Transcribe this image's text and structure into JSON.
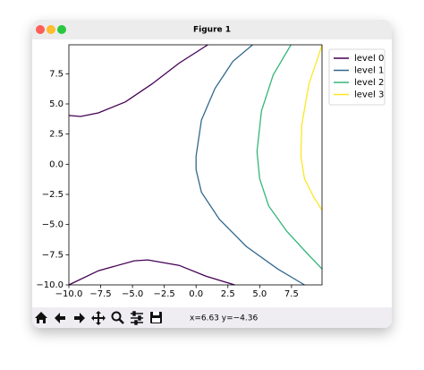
{
  "window": {
    "title": "Figure 1",
    "status": "x=6.63 y=−4.36"
  },
  "chart_data": {
    "type": "contour",
    "xlim": [
      -10,
      9.9
    ],
    "ylim": [
      -10,
      9.9
    ],
    "xticks": [
      {
        "value": -10,
        "label": "−10.0"
      },
      {
        "value": -7.5,
        "label": "−7.5"
      },
      {
        "value": -5,
        "label": "−5.0"
      },
      {
        "value": -2.5,
        "label": "−2.5"
      },
      {
        "value": 0,
        "label": "0.0"
      },
      2.5,
      {
        "value": 5,
        "label": "5.0"
      },
      7.5
    ],
    "yticks": [
      {
        "value": -10,
        "label": "−10.0"
      },
      {
        "value": -7.5,
        "label": "−7.5"
      },
      {
        "value": -5,
        "label": "−5.0"
      },
      {
        "value": -2.5,
        "label": "−2.5"
      },
      {
        "value": 0,
        "label": "0.0"
      },
      2.5,
      {
        "value": 5,
        "label": "5.0"
      },
      7.5
    ],
    "legend": "outside upper right",
    "series": [
      {
        "name": "level 0",
        "color": "#440154",
        "x": [
          -10,
          -9.08,
          -7.68,
          -5.56,
          -3.45,
          -1.34,
          0.92,
          null,
          -10,
          -7.68,
          -4.86,
          -3.8,
          -1.34,
          0.77,
          3.03
        ],
        "y": [
          4.04,
          3.96,
          4.26,
          5.16,
          6.66,
          8.38,
          9.9,
          null,
          -10,
          -8.83,
          -8.0,
          -7.93,
          -8.38,
          -9.27,
          -10
        ]
      },
      {
        "name": "level 1",
        "color": "#31688e",
        "x": [
          4.44,
          2.89,
          1.48,
          0.42,
          0,
          0,
          0.42,
          1.83,
          3.94,
          6.41,
          8.52
        ],
        "y": [
          9.9,
          8.53,
          6.28,
          3.66,
          0.67,
          -0.45,
          -2.32,
          -4.56,
          -6.81,
          -8.68,
          -10
        ]
      },
      {
        "name": "level 2",
        "color": "#35b779",
        "x": [
          7.46,
          6.06,
          5.14,
          4.79,
          5.0,
          5.7,
          7.11,
          8.87,
          9.9
        ],
        "y": [
          9.9,
          7.4,
          4.41,
          1.05,
          -1.2,
          -3.44,
          -5.53,
          -7.55,
          -8.68
        ]
      },
      {
        "name": "level 3",
        "color": "#fde725",
        "x": [
          9.9,
          8.87,
          8.31,
          8.24,
          8.52,
          9.23,
          9.9
        ],
        "y": [
          9.87,
          6.66,
          3.29,
          0.67,
          -1.2,
          -2.69,
          -3.81
        ]
      }
    ]
  }
}
